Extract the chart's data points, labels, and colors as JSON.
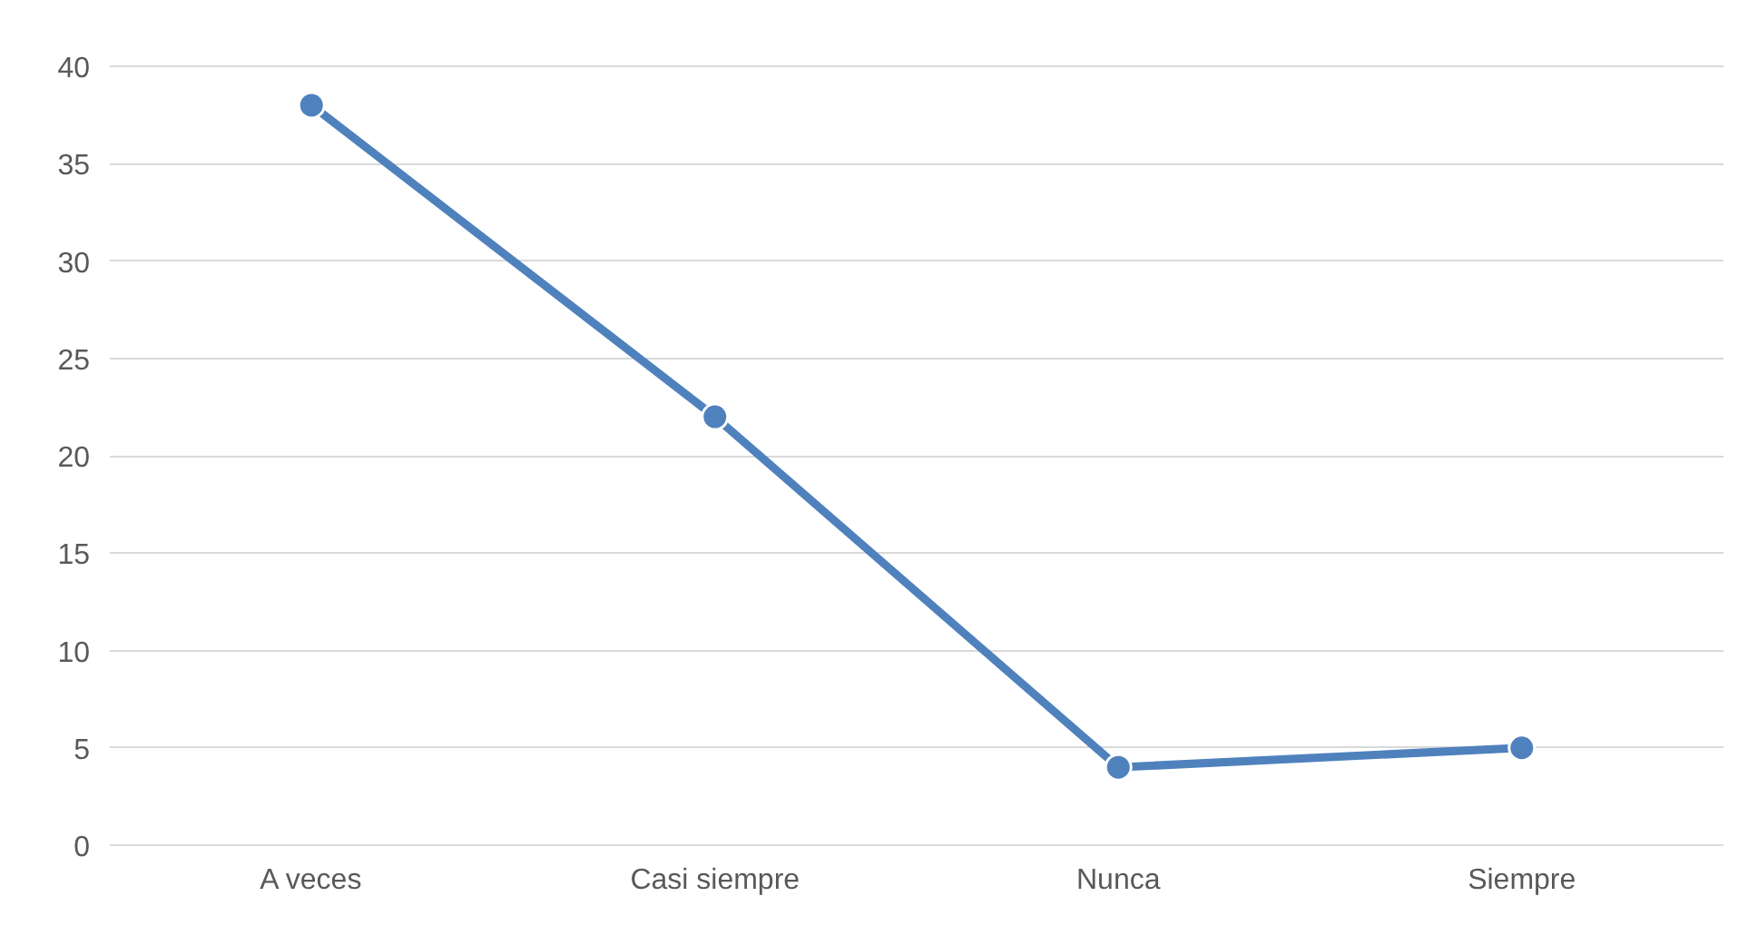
{
  "chart_data": {
    "type": "line",
    "categories": [
      "A veces",
      "Casi siempre",
      "Nunca",
      "Siempre"
    ],
    "series": [
      {
        "color": "#4f81bd",
        "values": [
          38,
          22,
          4,
          5
        ]
      }
    ],
    "ylim": [
      0,
      40
    ],
    "yticks": [
      0,
      5,
      10,
      15,
      20,
      25,
      30,
      35,
      40
    ],
    "grid": "y",
    "marker": "circle",
    "line_style": "solid"
  }
}
